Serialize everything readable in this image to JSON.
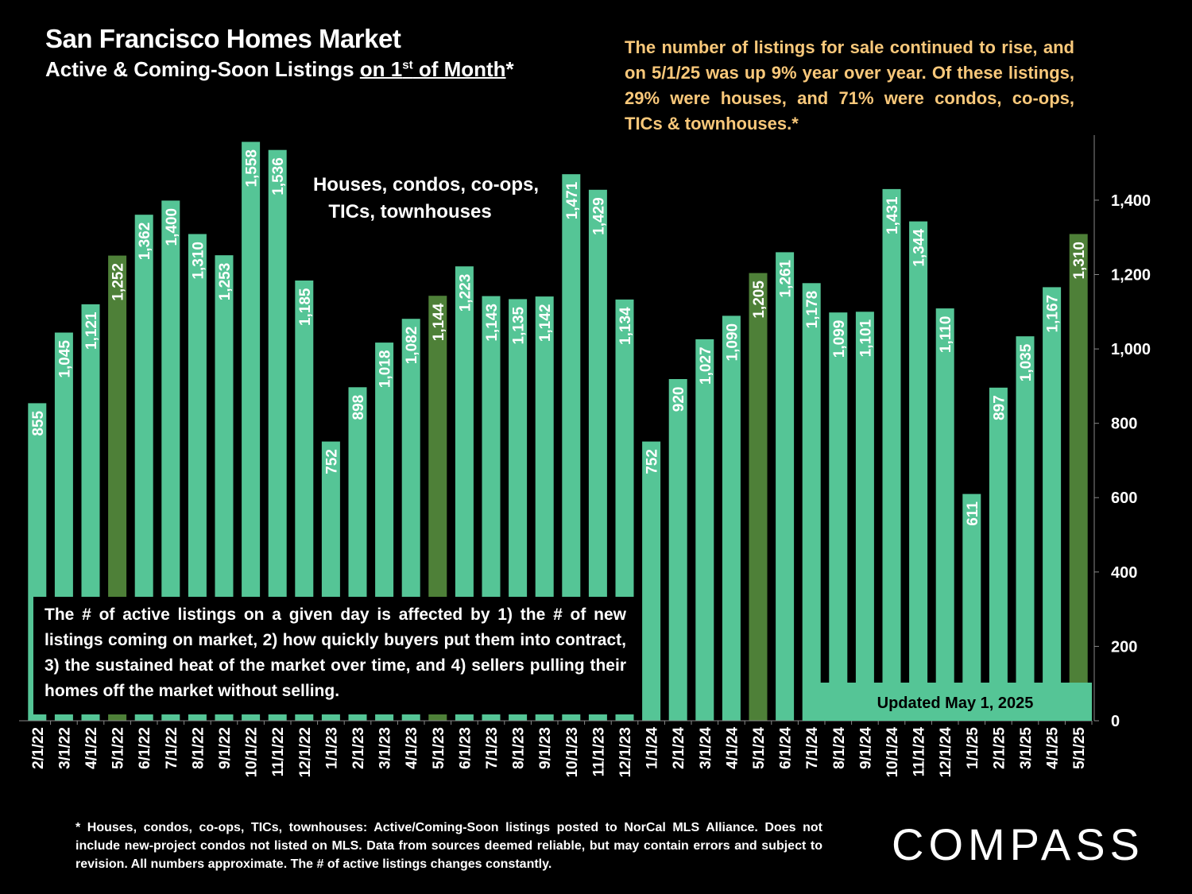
{
  "title": "San Francisco Homes Market",
  "subtitle": {
    "prefix": "Active & Coming-Soon Listings ",
    "underlined": "on 1",
    "superscript": "st",
    "underlined_tail": " of Month",
    "suffix": "*"
  },
  "summary_text": "The number of listings for sale continued to rise, and on 5/1/25 was up 9% year over year. Of these listings, 29% were houses, and 71% were condos, co-ops, TICs & townhouses.*",
  "footnote_text": "* Houses, condos, co-ops, TICs, townhouses: Active/Coming-Soon listings posted to NorCal MLS Alliance. Does not include new-project condos not listed on MLS. Data from sources deemed reliable, but may contain errors and subject to revision. All numbers approximate. The # of active listings changes constantly.",
  "logo_text": "COMPASS",
  "colors": {
    "bar": "#55C596",
    "highlight_bar": "#4E8038",
    "summary_text": "#F9C87A",
    "background": "#000000"
  },
  "chart_data": {
    "type": "bar",
    "title": "San Francisco Homes Market",
    "series_label_lines": [
      "Houses, condos, co-ops,",
      "TICs, townhouses"
    ],
    "categories": [
      "2/1/22",
      "3/1/22",
      "4/1/22",
      "5/1/22",
      "6/1/22",
      "7/1/22",
      "8/1/22",
      "9/1/22",
      "10/1/22",
      "11/1/22",
      "12/1/22",
      "1/1/23",
      "2/1/23",
      "3/1/23",
      "4/1/23",
      "5/1/23",
      "6/1/23",
      "7/1/23",
      "8/1/23",
      "9/1/23",
      "10/1/23",
      "11/1/23",
      "12/1/23",
      "1/1/24",
      "2/1/24",
      "3/1/24",
      "4/1/24",
      "5/1/24",
      "6/1/24",
      "7/1/24",
      "8/1/24",
      "9/1/24",
      "10/1/24",
      "11/1/24",
      "12/1/24",
      "1/1/25",
      "2/1/25",
      "3/1/25",
      "4/1/25",
      "5/1/25"
    ],
    "values": [
      855,
      1045,
      1121,
      1252,
      1362,
      1400,
      1310,
      1253,
      1558,
      1536,
      1185,
      752,
      898,
      1018,
      1082,
      1144,
      1223,
      1143,
      1135,
      1142,
      1471,
      1429,
      1134,
      752,
      920,
      1027,
      1090,
      1205,
      1261,
      1178,
      1099,
      1101,
      1431,
      1344,
      1110,
      611,
      897,
      1035,
      1167,
      1310
    ],
    "data_labels": [
      "855",
      "1,045",
      "1,121",
      "1,252",
      "1,362",
      "1,400",
      "1,310",
      "1,253",
      "1,558",
      "1,536",
      "1,185",
      "752",
      "898",
      "1,018",
      "1,082",
      "1,144",
      "1,223",
      "1,143",
      "1,135",
      "1,142",
      "1,471",
      "1,429",
      "1,134",
      "752",
      "920",
      "1,027",
      "1,090",
      "1,205",
      "1,261",
      "1,178",
      "1,099",
      "1,101",
      "1,431",
      "1,344",
      "1,110",
      "611",
      "897",
      "1,035",
      "1,167",
      "1,310"
    ],
    "highlighted_categories": [
      "5/1/22",
      "5/1/23",
      "5/1/24",
      "5/1/25"
    ],
    "ylim": [
      0,
      1575
    ],
    "yticks": [
      0,
      200,
      400,
      600,
      800,
      1000,
      1200,
      1400
    ],
    "ytick_labels": [
      "0",
      "200",
      "400",
      "600",
      "800",
      "1,000",
      "1,200",
      "1,400"
    ],
    "y_axis_side": "right",
    "grid": false,
    "annotations": {
      "market_note": "The # of active listings on a given day is affected by 1) the # of new listings coming on market, 2) how quickly buyers put them into contract, 3) the sustained heat of the market over time, and 4) sellers pulling their homes off the market without selling.",
      "updated": "Updated May 1, 2025"
    }
  }
}
